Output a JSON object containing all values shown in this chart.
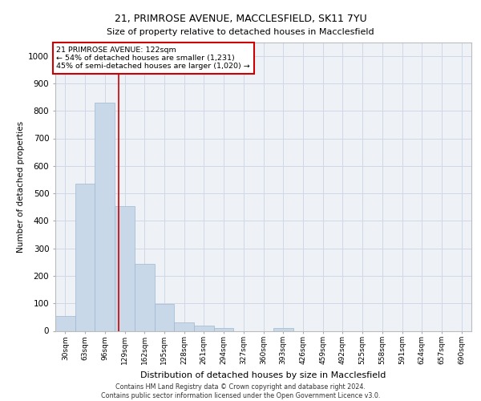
{
  "title_line1": "21, PRIMROSE AVENUE, MACCLESFIELD, SK11 7YU",
  "title_line2": "Size of property relative to detached houses in Macclesfield",
  "xlabel": "Distribution of detached houses by size in Macclesfield",
  "ylabel": "Number of detached properties",
  "footer_line1": "Contains HM Land Registry data © Crown copyright and database right 2024.",
  "footer_line2": "Contains public sector information licensed under the Open Government Licence v3.0.",
  "annotation_line1": "21 PRIMROSE AVENUE: 122sqm",
  "annotation_line2": "← 54% of detached houses are smaller (1,231)",
  "annotation_line3": "45% of semi-detached houses are larger (1,020) →",
  "bar_color": "#c8d8e8",
  "bar_edge_color": "#a0b8d0",
  "grid_color": "#d0d8e8",
  "red_line_color": "#cc0000",
  "annotation_box_color": "#cc0000",
  "background_color": "#eef2f7",
  "bin_labels": [
    "30sqm",
    "63sqm",
    "96sqm",
    "129sqm",
    "162sqm",
    "195sqm",
    "228sqm",
    "261sqm",
    "294sqm",
    "327sqm",
    "360sqm",
    "393sqm",
    "426sqm",
    "459sqm",
    "492sqm",
    "525sqm",
    "558sqm",
    "591sqm",
    "624sqm",
    "657sqm",
    "690sqm"
  ],
  "bin_edges": [
    16.5,
    49.5,
    82.5,
    115.5,
    148.5,
    181.5,
    214.5,
    247.5,
    280.5,
    313.5,
    346.5,
    379.5,
    412.5,
    445.5,
    478.5,
    511.5,
    544.5,
    577.5,
    610.5,
    643.5,
    676.5,
    709.5
  ],
  "bar_heights": [
    55,
    535,
    830,
    455,
    245,
    97,
    30,
    20,
    10,
    0,
    0,
    10,
    0,
    0,
    0,
    0,
    0,
    0,
    0,
    0,
    0
  ],
  "red_line_x": 122,
  "ylim": [
    0,
    1050
  ],
  "yticks": [
    0,
    100,
    200,
    300,
    400,
    500,
    600,
    700,
    800,
    900,
    1000
  ]
}
